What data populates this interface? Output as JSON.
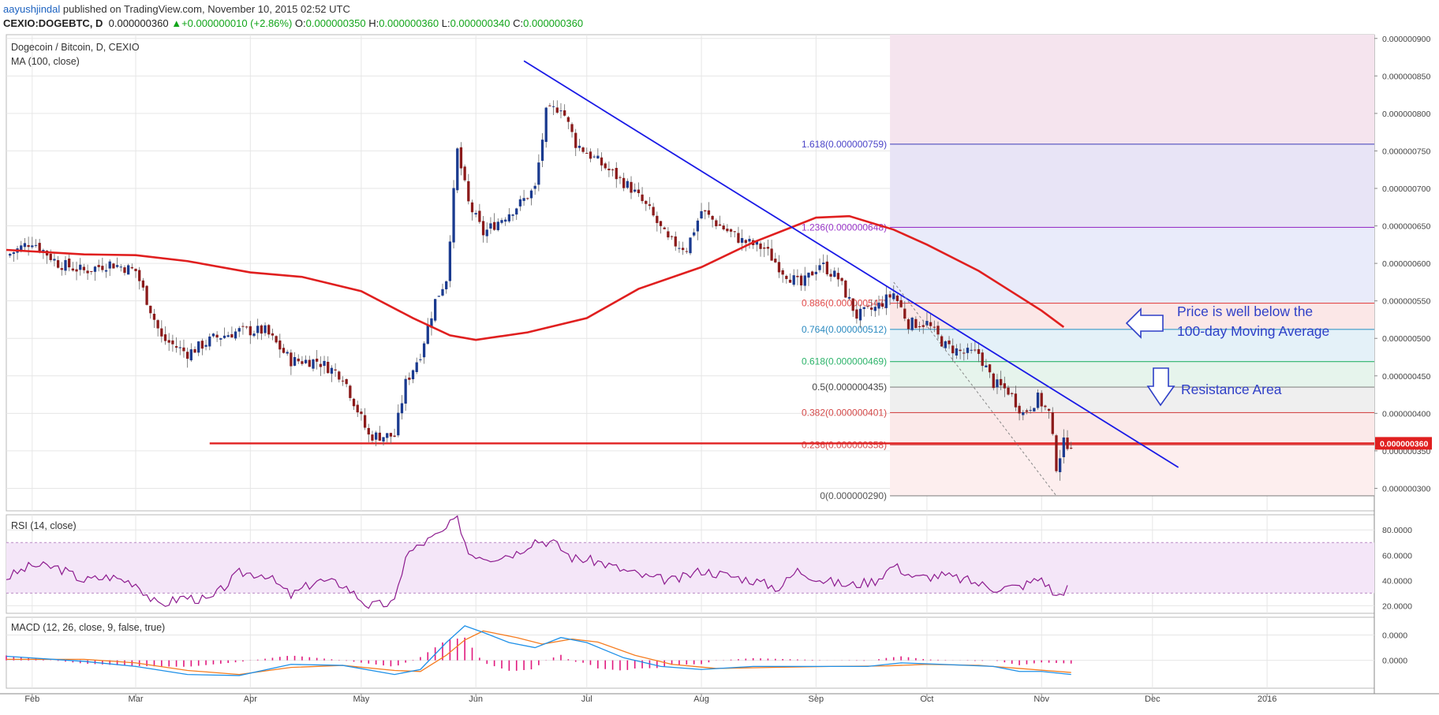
{
  "header": {
    "author": "aayushjindal",
    "published_text": " published on TradingView.com, November 10, 2015 02:52 UTC",
    "symbol": "CEXIO:DOGEBTC, D",
    "last": "0.000000360",
    "change_arrow": "▲",
    "change": "+0.000000010 (+2.86%)",
    "open_label": "O:",
    "open": "0.000000350",
    "high_label": "H:",
    "high": "0.000000360",
    "low_label": "L:",
    "low": "0.000000340",
    "close_label": "C:",
    "close": "0.000000360"
  },
  "colors": {
    "up": "#1a3a8f",
    "down": "#8b1a1a",
    "ma": "#e01f1f",
    "trendline": "#1a1ae6",
    "support": "#e01f1f",
    "rsi": "#8d1b8f",
    "macd": "#1e90e8",
    "signal": "#f57c20",
    "hist": "#e0197d",
    "annotation": "#2e3fc7"
  },
  "chart_data": [
    {
      "type": "candlestick",
      "title": "Dogecoin / Bitcoin, D, CEXIO",
      "indicator_label": "MA (100, close)",
      "x_tick_labels": [
        "Feb",
        "Mar",
        "Apr",
        "May",
        "Jun",
        "Jul",
        "Aug",
        "Sep",
        "Oct",
        "Nov",
        "Dec",
        "2016"
      ],
      "x_ticks": [
        "2015-02-01",
        "2015-03-01",
        "2015-04-01",
        "2015-05-01",
        "2015-06-01",
        "2015-07-01",
        "2015-08-01",
        "2015-09-01",
        "2015-10-01",
        "2015-11-01",
        "2015-12-01",
        "2016-01-01"
      ],
      "x_range": [
        "2015-01-25",
        "2016-01-30"
      ],
      "ylim": [
        2.7e-07,
        9.05e-07
      ],
      "y_ticks": [
        3e-07,
        3.5e-07,
        4e-07,
        4.5e-07,
        5e-07,
        5.5e-07,
        6e-07,
        6.5e-07,
        7e-07,
        7.5e-07,
        8e-07,
        8.5e-07,
        9e-07
      ],
      "y_tick_labels": [
        "0.000000300",
        "0.000000350",
        "0.000000400",
        "0.000000450",
        "0.000000500",
        "0.000000550",
        "0.000000600",
        "0.000000650",
        "0.000000700",
        "0.000000750",
        "0.000000800",
        "0.000000850",
        "0.000000900"
      ],
      "last_price": 3.6e-07,
      "last_price_label": "0.000000360",
      "close_path": [
        [
          "2015-01-25",
          6.1e-07
        ],
        [
          "2015-02-01",
          6.3e-07
        ],
        [
          "2015-02-08",
          6e-07
        ],
        [
          "2015-02-15",
          5.9e-07
        ],
        [
          "2015-02-22",
          6e-07
        ],
        [
          "2015-03-01",
          5.9e-07
        ],
        [
          "2015-03-08",
          5e-07
        ],
        [
          "2015-03-15",
          4.8e-07
        ],
        [
          "2015-03-22",
          5e-07
        ],
        [
          "2015-03-29",
          5.1e-07
        ],
        [
          "2015-04-05",
          5.1e-07
        ],
        [
          "2015-04-12",
          4.7e-07
        ],
        [
          "2015-04-19",
          4.7e-07
        ],
        [
          "2015-04-26",
          4.5e-07
        ],
        [
          "2015-05-03",
          3.7e-07
        ],
        [
          "2015-05-10",
          3.7e-07
        ],
        [
          "2015-05-13",
          4.4e-07
        ],
        [
          "2015-05-17",
          4.8e-07
        ],
        [
          "2015-05-21",
          5.5e-07
        ],
        [
          "2015-05-24",
          5.8e-07
        ],
        [
          "2015-05-27",
          7.5e-07
        ],
        [
          "2015-05-30",
          6.8e-07
        ],
        [
          "2015-06-03",
          6.4e-07
        ],
        [
          "2015-06-08",
          6.6e-07
        ],
        [
          "2015-06-13",
          6.8e-07
        ],
        [
          "2015-06-17",
          7e-07
        ],
        [
          "2015-06-20",
          8e-07
        ],
        [
          "2015-06-24",
          8.1e-07
        ],
        [
          "2015-06-28",
          7.6e-07
        ],
        [
          "2015-07-03",
          7.4e-07
        ],
        [
          "2015-07-08",
          7.2e-07
        ],
        [
          "2015-07-13",
          7e-07
        ],
        [
          "2015-07-18",
          6.7e-07
        ],
        [
          "2015-07-23",
          6.3e-07
        ],
        [
          "2015-07-28",
          6.2e-07
        ],
        [
          "2015-08-01",
          6.7e-07
        ],
        [
          "2015-08-06",
          6.5e-07
        ],
        [
          "2015-08-12",
          6.3e-07
        ],
        [
          "2015-08-18",
          6.2e-07
        ],
        [
          "2015-08-23",
          5.9e-07
        ],
        [
          "2015-08-28",
          5.7e-07
        ],
        [
          "2015-09-02",
          6e-07
        ],
        [
          "2015-09-07",
          5.8e-07
        ],
        [
          "2015-09-12",
          5.3e-07
        ],
        [
          "2015-09-17",
          5.4e-07
        ],
        [
          "2015-09-22",
          5.6e-07
        ],
        [
          "2015-09-26",
          5.2e-07
        ],
        [
          "2015-10-01",
          5.2e-07
        ],
        [
          "2015-10-06",
          4.9e-07
        ],
        [
          "2015-10-11",
          4.8e-07
        ],
        [
          "2015-10-15",
          4.8e-07
        ],
        [
          "2015-10-19",
          4.4e-07
        ],
        [
          "2015-10-23",
          4.3e-07
        ],
        [
          "2015-10-27",
          4e-07
        ],
        [
          "2015-10-31",
          4.2e-07
        ],
        [
          "2015-11-03",
          4e-07
        ],
        [
          "2015-11-05",
          3.3e-07
        ],
        [
          "2015-11-07",
          3.6e-07
        ],
        [
          "2015-11-09",
          3.6e-07
        ]
      ],
      "ma_100": [
        [
          "2015-01-25",
          6.18e-07
        ],
        [
          "2015-02-15",
          6.12e-07
        ],
        [
          "2015-03-01",
          6.11e-07
        ],
        [
          "2015-03-15",
          6.03e-07
        ],
        [
          "2015-04-01",
          5.88e-07
        ],
        [
          "2015-04-15",
          5.82e-07
        ],
        [
          "2015-05-01",
          5.63e-07
        ],
        [
          "2015-05-15",
          5.27e-07
        ],
        [
          "2015-05-25",
          5.04e-07
        ],
        [
          "2015-06-01",
          4.98e-07
        ],
        [
          "2015-06-15",
          5.08e-07
        ],
        [
          "2015-07-01",
          5.27e-07
        ],
        [
          "2015-07-15",
          5.66e-07
        ],
        [
          "2015-08-01",
          5.95e-07
        ],
        [
          "2015-08-15",
          6.28e-07
        ],
        [
          "2015-09-01",
          6.61e-07
        ],
        [
          "2015-09-10",
          6.63e-07
        ],
        [
          "2015-09-22",
          6.45e-07
        ],
        [
          "2015-10-01",
          6.25e-07
        ],
        [
          "2015-10-15",
          5.9e-07
        ],
        [
          "2015-11-01",
          5.37e-07
        ],
        [
          "2015-11-07",
          5.15e-07
        ]
      ],
      "trendline": [
        [
          "2015-06-14",
          8.7e-07
        ],
        [
          "2015-12-08",
          3.28e-07
        ]
      ],
      "support_line": {
        "value": 3.6e-07,
        "from": "2015-03-21",
        "to": "2016-01-30"
      },
      "fibonacci": {
        "from": "2015-09-21",
        "levels": [
          {
            "label": "1.618(0.000000759)",
            "value": 7.59e-07
          },
          {
            "label": "1.236(0.000000648)",
            "value": 6.48e-07
          },
          {
            "label": "0.886(0.000000547)",
            "value": 5.47e-07
          },
          {
            "label": "0.764(0.000000512)",
            "value": 5.12e-07
          },
          {
            "label": "0.618(0.000000469)",
            "value": 4.69e-07
          },
          {
            "label": "0.5(0.000000435)",
            "value": 4.35e-07
          },
          {
            "label": "0.382(0.000000401)",
            "value": 4.01e-07
          },
          {
            "label": "0.236(0.000000358)",
            "value": 3.58e-07
          },
          {
            "label": "0(0.000000290)",
            "value": 2.9e-07
          }
        ]
      },
      "annotations": [
        {
          "text": "Price is well below the",
          "arrow": "left"
        },
        {
          "text": "100-day Moving Average"
        },
        {
          "text": "Resistance Area",
          "arrow": "down"
        }
      ]
    },
    {
      "type": "line",
      "title": "RSI (14, close)",
      "ylim": [
        14,
        92
      ],
      "y_ticks": [
        20,
        40,
        60,
        80
      ],
      "y_tick_labels": [
        "20.0000",
        "40.0000",
        "60.0000",
        "80.0000"
      ],
      "band": [
        30,
        70
      ],
      "series": [
        {
          "values": [
            [
              "2015-01-25",
              42
            ],
            [
              "2015-02-01",
              52
            ],
            [
              "2015-02-08",
              50
            ],
            [
              "2015-02-15",
              40
            ],
            [
              "2015-02-22",
              43
            ],
            [
              "2015-03-01",
              38
            ],
            [
              "2015-03-07",
              20
            ],
            [
              "2015-03-14",
              27
            ],
            [
              "2015-03-21",
              24
            ],
            [
              "2015-03-29",
              46
            ],
            [
              "2015-04-05",
              45
            ],
            [
              "2015-04-12",
              28
            ],
            [
              "2015-04-19",
              40
            ],
            [
              "2015-04-26",
              37
            ],
            [
              "2015-05-03",
              20
            ],
            [
              "2015-05-10",
              22
            ],
            [
              "2015-05-13",
              60
            ],
            [
              "2015-05-18",
              70
            ],
            [
              "2015-05-23",
              78
            ],
            [
              "2015-05-27",
              90
            ],
            [
              "2015-05-30",
              62
            ],
            [
              "2015-06-05",
              58
            ],
            [
              "2015-06-12",
              62
            ],
            [
              "2015-06-17",
              72
            ],
            [
              "2015-06-22",
              70
            ],
            [
              "2015-06-27",
              58
            ],
            [
              "2015-07-04",
              55
            ],
            [
              "2015-07-11",
              48
            ],
            [
              "2015-07-18",
              42
            ],
            [
              "2015-07-25",
              40
            ],
            [
              "2015-08-01",
              48
            ],
            [
              "2015-08-08",
              44
            ],
            [
              "2015-08-15",
              40
            ],
            [
              "2015-08-22",
              34
            ],
            [
              "2015-08-27",
              48
            ],
            [
              "2015-09-03",
              40
            ],
            [
              "2015-09-10",
              36
            ],
            [
              "2015-09-17",
              40
            ],
            [
              "2015-09-22",
              52
            ],
            [
              "2015-09-28",
              42
            ],
            [
              "2015-10-05",
              44
            ],
            [
              "2015-10-12",
              40
            ],
            [
              "2015-10-19",
              34
            ],
            [
              "2015-10-26",
              35
            ],
            [
              "2015-11-01",
              42
            ],
            [
              "2015-11-05",
              27
            ],
            [
              "2015-11-09",
              37
            ]
          ]
        }
      ]
    },
    {
      "type": "line",
      "title": "MACD (12, 26, close, 9, false, true)",
      "ylim": [
        -5.5e-08,
        8.5e-08
      ],
      "y_ticks": [
        0.0,
        5e-08
      ],
      "y_tick_labels": [
        "0.0000",
        "0.0000"
      ],
      "series": [
        {
          "values": [
            [
              "2015-01-25",
              8e-09
            ],
            [
              "2015-02-15",
              -2e-09
            ],
            [
              "2015-03-01",
              -1.2e-08
            ],
            [
              "2015-03-15",
              -2.8e-08
            ],
            [
              "2015-03-29",
              -3e-08
            ],
            [
              "2015-04-12",
              -8e-09
            ],
            [
              "2015-04-26",
              -1e-08
            ],
            [
              "2015-05-10",
              -2.8e-08
            ],
            [
              "2015-05-17",
              -1.8e-08
            ],
            [
              "2015-05-24",
              3.5e-08
            ],
            [
              "2015-05-29",
              6.8e-08
            ],
            [
              "2015-06-03",
              5.5e-08
            ],
            [
              "2015-06-10",
              3.5e-08
            ],
            [
              "2015-06-17",
              2.5e-08
            ],
            [
              "2015-06-24",
              4.5e-08
            ],
            [
              "2015-07-01",
              3.5e-08
            ],
            [
              "2015-07-11",
              5e-09
            ],
            [
              "2015-07-21",
              -1.2e-08
            ],
            [
              "2015-08-01",
              -1.8e-08
            ],
            [
              "2015-08-15",
              -1.2e-08
            ],
            [
              "2015-09-01",
              -1.2e-08
            ],
            [
              "2015-09-15",
              -1.2e-08
            ],
            [
              "2015-09-24",
              -5e-09
            ],
            [
              "2015-10-05",
              -8e-09
            ],
            [
              "2015-10-19",
              -1.2e-08
            ],
            [
              "2015-10-26",
              -2.2e-08
            ],
            [
              "2015-11-01",
              -2.2e-08
            ],
            [
              "2015-11-09",
              -2.8e-08
            ]
          ]
        },
        {
          "values": [
            [
              "2015-01-25",
              2e-09
            ],
            [
              "2015-02-15",
              2e-09
            ],
            [
              "2015-03-01",
              -5e-09
            ],
            [
              "2015-03-15",
              -2e-08
            ],
            [
              "2015-03-29",
              -2.8e-08
            ],
            [
              "2015-04-12",
              -1.4e-08
            ],
            [
              "2015-04-26",
              -1e-08
            ],
            [
              "2015-05-10",
              -2e-08
            ],
            [
              "2015-05-17",
              -2.2e-08
            ],
            [
              "2015-05-24",
              1e-08
            ],
            [
              "2015-05-29",
              4e-08
            ],
            [
              "2015-06-03",
              5.8e-08
            ],
            [
              "2015-06-12",
              4.5e-08
            ],
            [
              "2015-06-19",
              3.2e-08
            ],
            [
              "2015-06-27",
              4.2e-08
            ],
            [
              "2015-07-04",
              3.6e-08
            ],
            [
              "2015-07-14",
              1e-08
            ],
            [
              "2015-07-24",
              -8e-09
            ],
            [
              "2015-08-05",
              -1.6e-08
            ],
            [
              "2015-08-20",
              -1.4e-08
            ],
            [
              "2015-09-05",
              -1.2e-08
            ],
            [
              "2015-09-20",
              -1.1e-08
            ],
            [
              "2015-10-01",
              -8e-09
            ],
            [
              "2015-10-15",
              -1e-08
            ],
            [
              "2015-10-26",
              -1.6e-08
            ],
            [
              "2015-11-02",
              -2e-08
            ],
            [
              "2015-11-09",
              -2.4e-08
            ]
          ]
        }
      ]
    }
  ]
}
